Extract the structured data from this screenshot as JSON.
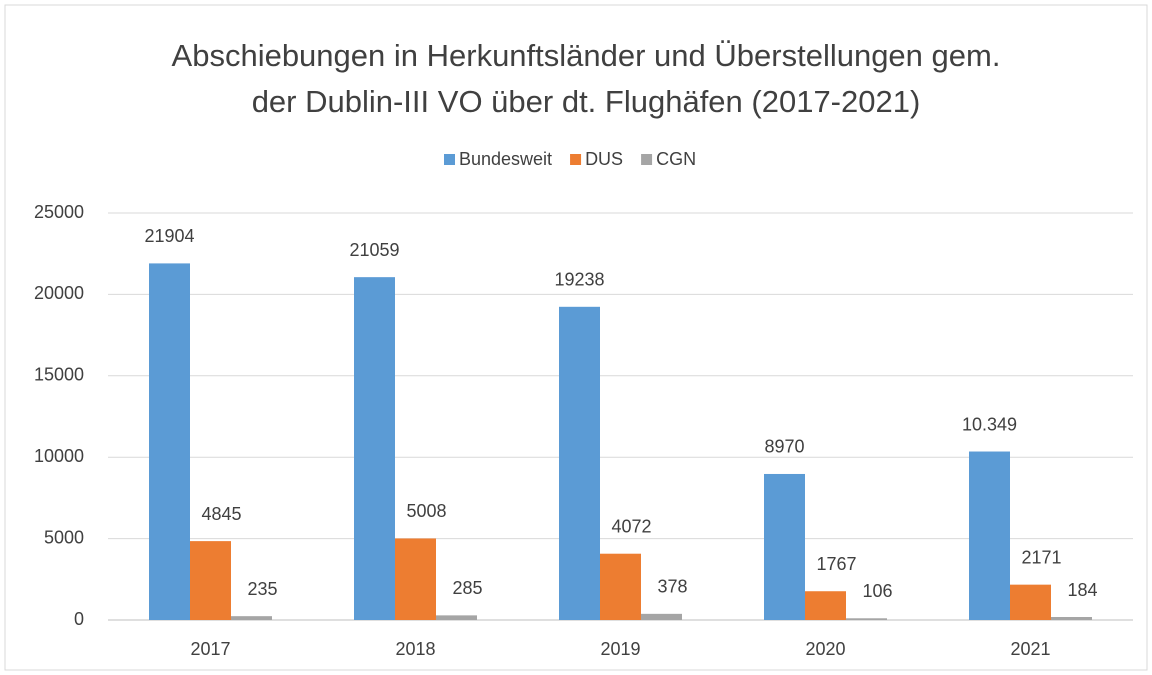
{
  "chart_data": {
    "type": "bar",
    "title": [
      "Abschiebungen in Herkunftsländer und Überstellungen gem.",
      "der Dublin-III VO über dt. Flughäfen (2017-2021)"
    ],
    "categories": [
      "2017",
      "2018",
      "2019",
      "2020",
      "2021"
    ],
    "series": [
      {
        "name": "Bundesweit",
        "color": "#5b9bd5",
        "values": [
          21904,
          21059,
          19238,
          8970,
          10349
        ],
        "value_labels": [
          "21904",
          "21059",
          "19238",
          "8970",
          "10.349"
        ]
      },
      {
        "name": "DUS",
        "color": "#ed7d31",
        "values": [
          4845,
          5008,
          4072,
          1767,
          2171
        ]
      },
      {
        "name": "CGN",
        "color": "#a5a5a5",
        "values": [
          235,
          285,
          378,
          106,
          184
        ]
      }
    ],
    "ylim": [
      0,
      25000
    ],
    "yticks": [
      0,
      5000,
      10000,
      15000,
      20000,
      25000
    ],
    "grid": true,
    "legend": "top"
  }
}
